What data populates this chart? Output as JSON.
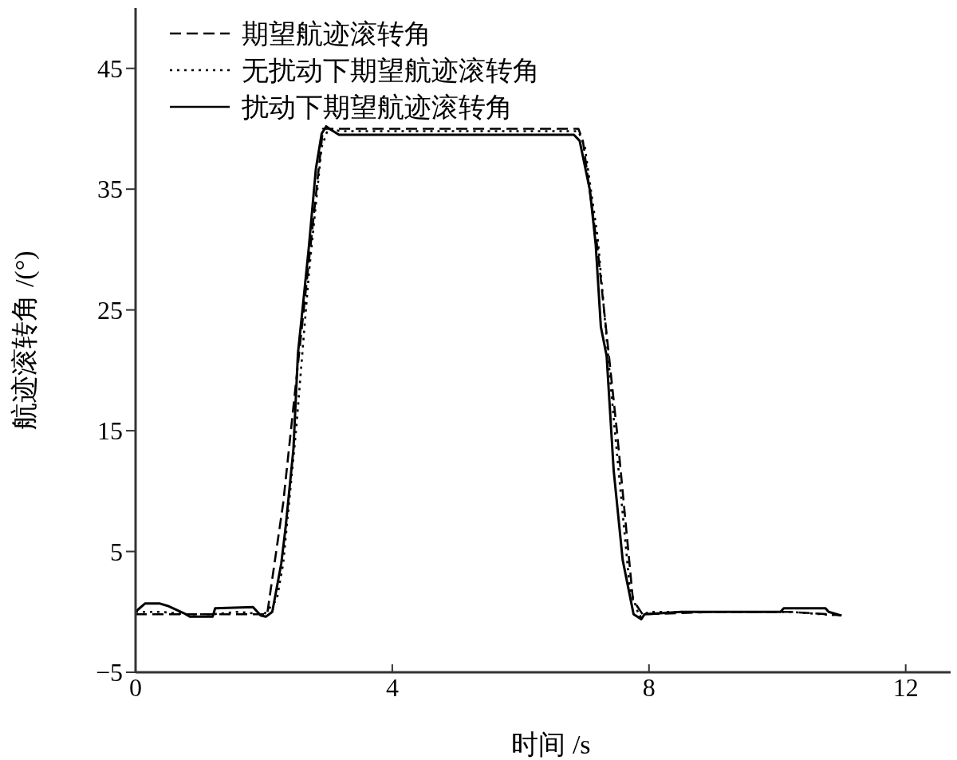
{
  "chart_data": {
    "type": "line",
    "xlabel": "时间 /s",
    "ylabel": "航迹滚转角 /(°)",
    "xlim": [
      0,
      12.7
    ],
    "ylim": [
      -5,
      50
    ],
    "xticks": [
      0,
      4,
      8,
      12
    ],
    "yticks": [
      -5,
      5,
      15,
      25,
      35,
      45
    ],
    "grid": false,
    "legend": "top left",
    "series": [
      {
        "name": "期望航迹滚转角",
        "color": "#000000",
        "line_style": "dashed",
        "x": [
          0,
          0.5,
          1.0,
          1.5,
          2.05,
          2.3,
          2.6,
          2.92,
          3.2,
          5,
          6.9,
          6.97,
          7.2,
          7.5,
          7.75,
          7.9,
          9,
          10.2,
          10.8,
          11.0
        ],
        "values": [
          -0.2,
          -0.2,
          -0.2,
          -0.2,
          -0.2,
          9,
          24,
          40,
          40,
          40,
          40,
          39,
          30,
          15,
          1,
          -0.2,
          0,
          0,
          -0.2,
          -0.3
        ]
      },
      {
        "name": "无扰动下期望航迹滚转角",
        "color": "#000000",
        "line_style": "dotted",
        "x": [
          0,
          0.4,
          0.8,
          1.2,
          1.6,
          2.0,
          2.2,
          2.3,
          2.5,
          2.7,
          2.9,
          3.0,
          3.2,
          5,
          6.9,
          7.0,
          7.2,
          7.45,
          7.7,
          7.85,
          8.0,
          9,
          10.2,
          10.7,
          11.0
        ],
        "values": [
          0,
          0,
          -0.2,
          -0.2,
          0,
          -0.2,
          1,
          4,
          15,
          28,
          38.5,
          40,
          39.8,
          39.8,
          39.8,
          38.5,
          31,
          16,
          2,
          -0.4,
          0,
          0,
          0,
          -0.2,
          -0.3
        ]
      },
      {
        "name": "扰动下期望航迹滚转角",
        "color": "#000000",
        "line_style": "solid",
        "x": [
          0,
          0.04,
          0.15,
          0.37,
          0.5,
          0.75,
          0.85,
          1.2,
          1.24,
          1.83,
          1.95,
          2.03,
          2.13,
          2.27,
          2.34,
          2.46,
          2.53,
          2.61,
          2.7,
          2.81,
          2.9,
          2.97,
          3.05,
          3.17,
          5,
          6.83,
          6.92,
          7.08,
          7.17,
          7.25,
          7.34,
          7.45,
          7.59,
          7.76,
          7.88,
          7.93,
          8.5,
          10.05,
          10.1,
          10.75,
          10.8,
          11.0
        ],
        "values": [
          0,
          0.2,
          0.7,
          0.7,
          0.5,
          -0.1,
          -0.4,
          -0.4,
          0.3,
          0.4,
          -0.3,
          -0.4,
          0,
          4,
          7.1,
          13.5,
          21.4,
          25.5,
          30.2,
          36.7,
          39.6,
          40.2,
          39.9,
          39.5,
          39.5,
          39.5,
          39,
          34.9,
          30.4,
          23.6,
          21.2,
          11.7,
          4.3,
          -0.2,
          -0.6,
          -0.2,
          0,
          0,
          0.3,
          0.3,
          0,
          -0.3
        ]
      }
    ]
  }
}
